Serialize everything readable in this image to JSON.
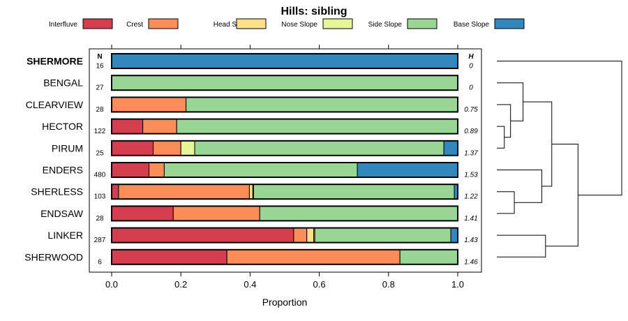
{
  "chart_data": {
    "type": "bar",
    "stacked": true,
    "orientation": "horizontal",
    "title": "Hills: sibling",
    "xlabel": "Proportion",
    "ylabel": "",
    "xlim": [
      0,
      1
    ],
    "xticks": [
      "0.0",
      "0.2",
      "0.4",
      "0.6",
      "0.8",
      "1.0"
    ],
    "legend_position": "top",
    "n_header": "N",
    "h_header": "H",
    "series": [
      {
        "name": "Interfluve",
        "color": "#d53e4f"
      },
      {
        "name": "Crest",
        "color": "#fc8d59"
      },
      {
        "name": "Head Slope",
        "color": "#fee08b"
      },
      {
        "name": "Nose Slope",
        "color": "#e6f598"
      },
      {
        "name": "Side Slope",
        "color": "#99d594"
      },
      {
        "name": "Base Slope",
        "color": "#3288bd"
      }
    ],
    "rows": [
      {
        "name": "SHERMORE",
        "bold": true,
        "n": "16",
        "h": "0",
        "values": [
          0,
          0,
          0,
          0,
          0,
          1.0
        ]
      },
      {
        "name": "BENGAL",
        "bold": false,
        "n": "27",
        "h": "0",
        "values": [
          0,
          0,
          0,
          0,
          1.0,
          0
        ]
      },
      {
        "name": "CLEARVIEW",
        "bold": false,
        "n": "28",
        "h": "0.75",
        "values": [
          0,
          0.215,
          0,
          0,
          0.785,
          0
        ]
      },
      {
        "name": "HECTOR",
        "bold": false,
        "n": "122",
        "h": "0.89",
        "values": [
          0.09,
          0.098,
          0,
          0,
          0.812,
          0
        ]
      },
      {
        "name": "PIRUM",
        "bold": false,
        "n": "25",
        "h": "1.37",
        "values": [
          0.12,
          0.08,
          0,
          0.04,
          0.72,
          0.04
        ]
      },
      {
        "name": "ENDERS",
        "bold": false,
        "n": "480",
        "h": "1.53",
        "values": [
          0.108,
          0.044,
          0,
          0,
          0.558,
          0.29
        ]
      },
      {
        "name": "SHERLESS",
        "bold": false,
        "n": "103",
        "h": "1.22",
        "values": [
          0.02,
          0.378,
          0.01,
          0.002,
          0.58,
          0.01
        ]
      },
      {
        "name": "ENDSAW",
        "bold": false,
        "n": "28",
        "h": "1.41",
        "values": [
          0.178,
          0.25,
          0,
          0,
          0.572,
          0
        ]
      },
      {
        "name": "LINKER",
        "bold": false,
        "n": "287",
        "h": "1.43",
        "values": [
          0.526,
          0.038,
          0.02,
          0.003,
          0.393,
          0.02
        ]
      },
      {
        "name": "SHERWOOD",
        "bold": false,
        "n": "6",
        "h": "1.46",
        "values": [
          0.333,
          0.5,
          0,
          0,
          0.167,
          0
        ]
      }
    ],
    "dendrogram": {
      "description": "hierarchical clustering of rows (heights relative)",
      "merges": [
        {
          "left": "PIRUM",
          "right": "HECTOR",
          "height": 0.06
        },
        {
          "left": "merge0",
          "right": "CLEARVIEW",
          "height": 0.11
        },
        {
          "left": "merge1",
          "right": "BENGAL",
          "height": 0.21
        },
        {
          "left": "SHERLESS",
          "right": "ENDSAW",
          "height": 0.14
        },
        {
          "left": "ENDERS",
          "right": "merge3",
          "height": 0.36
        },
        {
          "left": "merge2",
          "right": "merge4",
          "height": 0.44
        },
        {
          "left": "LINKER",
          "right": "SHERWOOD",
          "height": 0.39
        },
        {
          "left": "merge5",
          "right": "merge6",
          "height": 0.65
        },
        {
          "left": "SHERMORE",
          "right": "merge7",
          "height": 1.0
        }
      ]
    }
  }
}
